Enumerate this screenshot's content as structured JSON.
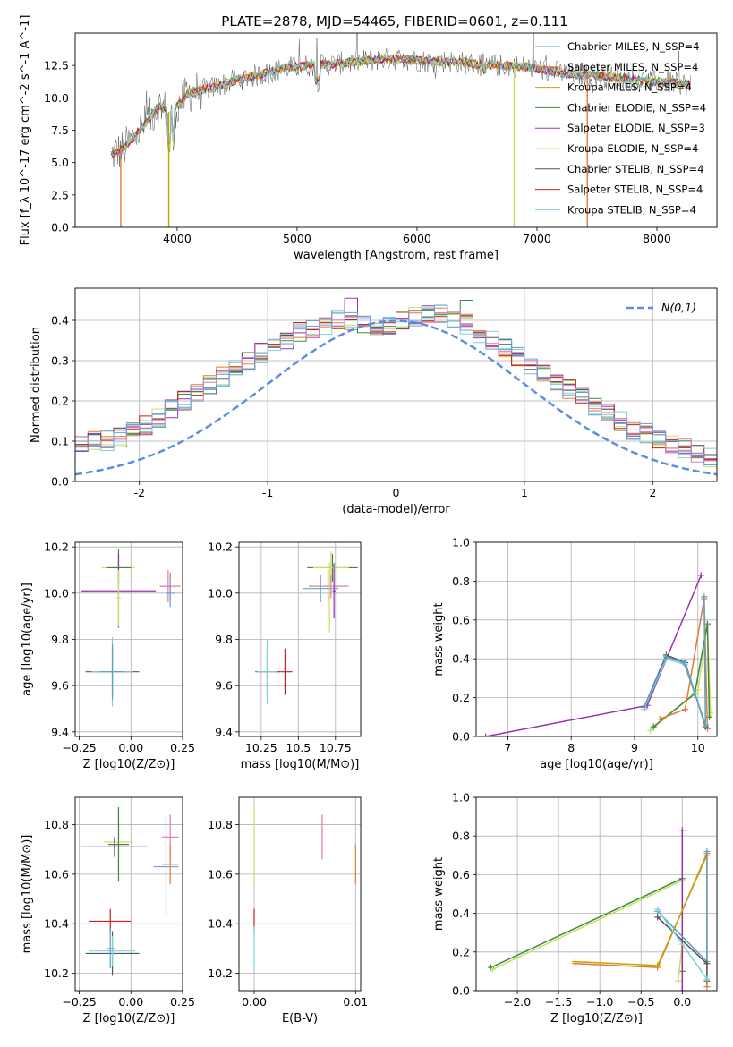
{
  "page": {
    "title": "PLATE=2878, MJD=54465, FIBERID=0601, z=0.111"
  },
  "colors": {
    "chabrier_miles": "#5aa0c8",
    "salpeter_miles": "#e07b39",
    "kroupa_miles": "#c8a000",
    "chabrier_elodie": "#3b8a3b",
    "salpeter_elodie": "#9b30b0",
    "kroupa_elodie": "#c8e060",
    "chabrier_stelib": "#555555",
    "salpeter_stelib": "#c81e1e",
    "kroupa_stelib": "#7fd0d8",
    "gauss": "#5b8ee0",
    "pink": "#e07bb0",
    "blue": "#6a9fe0"
  },
  "chart_data": [
    {
      "id": "spectrum",
      "type": "line",
      "title": "PLATE=2878, MJD=54465, FIBERID=0601, z=0.111",
      "xlabel": "wavelength [Angstrom, rest frame]",
      "ylabel": "Flux [f_λ 10^-17 erg cm^-2 s^-1 A^-1]",
      "xlim": [
        3150,
        8500
      ],
      "ylim": [
        0,
        15
      ],
      "xticks": [
        4000,
        5000,
        6000,
        7000,
        8000
      ],
      "yticks": [
        0.0,
        2.5,
        5.0,
        7.5,
        10.0,
        12.5
      ],
      "legend": "right",
      "series": [
        {
          "name": "Chabrier MILES, N_SSP=4",
          "color_key": "chabrier_miles"
        },
        {
          "name": "Salpeter MILES, N_SSP=4",
          "color_key": "salpeter_miles"
        },
        {
          "name": "Kroupa MILES, N_SSP=4",
          "color_key": "kroupa_miles"
        },
        {
          "name": "Chabrier ELODIE, N_SSP=4",
          "color_key": "chabrier_elodie"
        },
        {
          "name": "Salpeter ELODIE, N_SSP=3",
          "color_key": "salpeter_elodie"
        },
        {
          "name": "Kroupa ELODIE, N_SSP=4",
          "color_key": "kroupa_elodie"
        },
        {
          "name": "Chabrier STELIB, N_SSP=4",
          "color_key": "chabrier_stelib"
        },
        {
          "name": "Salpeter STELIB, N_SSP=4",
          "color_key": "salpeter_stelib"
        },
        {
          "name": "Kroupa STELIB, N_SSP=4",
          "color_key": "kroupa_stelib"
        }
      ],
      "continuum": {
        "x": [
          3450,
          3550,
          3700,
          3850,
          3950,
          4100,
          4300,
          4500,
          4700,
          4900,
          5100,
          5300,
          5500,
          5700,
          5900,
          6100,
          6300,
          6500,
          6700,
          6900,
          7100,
          7300,
          7500,
          7700,
          7900,
          8100,
          8280
        ],
        "y": [
          5.6,
          6.0,
          7.6,
          9.4,
          8.8,
          10.4,
          10.8,
          11.4,
          11.8,
          12.3,
          12.5,
          12.6,
          12.8,
          13.0,
          13.0,
          12.8,
          12.8,
          12.6,
          12.5,
          12.4,
          12.1,
          11.8,
          11.7,
          11.5,
          11.3,
          11.2,
          11.0
        ]
      },
      "drops": [
        {
          "x": 3530,
          "y": 0.0,
          "series_key": "salpeter_miles"
        },
        {
          "x": 3930,
          "y": 0.0,
          "series_key": "kroupa_miles"
        },
        {
          "x": 6810,
          "y": 0.0,
          "series_key": "kroupa_elodie"
        },
        {
          "x": 7420,
          "y": 0.0,
          "series_key": "salpeter_miles"
        }
      ]
    },
    {
      "id": "residuals",
      "type": "line",
      "xlabel": "(data-model)/error",
      "ylabel": "Normed distribution",
      "xlim": [
        -2.5,
        2.5
      ],
      "ylim": [
        0,
        0.48
      ],
      "xticks": [
        -2,
        -1,
        0,
        1,
        2
      ],
      "yticks": [
        0.0,
        0.1,
        0.2,
        0.3,
        0.4
      ],
      "legend": "top-right",
      "legend_label": "N(0,1)",
      "bins": {
        "bin_width": 0.1,
        "base_values": [
          0.02,
          0.03,
          0.04,
          0.045,
          0.05,
          0.06,
          0.07,
          0.09,
          0.1,
          0.1,
          0.11,
          0.13,
          0.14,
          0.16,
          0.18,
          0.2,
          0.22,
          0.24,
          0.26,
          0.28,
          0.3,
          0.32,
          0.33,
          0.35,
          0.37,
          0.38,
          0.39,
          0.4,
          0.4,
          0.39,
          0.38,
          0.39,
          0.4,
          0.41,
          0.42,
          0.42,
          0.4,
          0.39,
          0.37,
          0.35,
          0.33,
          0.31,
          0.29,
          0.27,
          0.25,
          0.23,
          0.21,
          0.19,
          0.17,
          0.15,
          0.13,
          0.12,
          0.1,
          0.09,
          0.08,
          0.07,
          0.06,
          0.05,
          0.045,
          0.04,
          0.03,
          0.03,
          0.02,
          0.02
        ]
      }
    },
    {
      "id": "z_vs_age",
      "type": "scatter",
      "xlabel": "Z [log10(Z/Z⊙)]",
      "ylabel": "age  [log10(age/yr)]",
      "xlim": [
        -0.27,
        0.25
      ],
      "ylim": [
        9.38,
        10.22
      ],
      "xticks": [
        -0.25,
        0.0,
        0.25
      ],
      "xticklabels": [
        "−0.25",
        "0.00",
        "0.25"
      ],
      "yticks": [
        9.4,
        9.6,
        9.8,
        10.0,
        10.2
      ],
      "points": [
        {
          "x": -0.06,
          "y": 10.11,
          "xerr": 0.08,
          "yerr": 0.06,
          "color_key": "kroupa_elodie"
        },
        {
          "x": -0.06,
          "y": 10.11,
          "xerr": 0.06,
          "yerr": 0.08,
          "color_key": "chabrier_elodie"
        },
        {
          "x": -0.06,
          "y": 10.01,
          "xerr": 0.18,
          "yerr": 0.16,
          "color_key": "salpeter_elodie"
        },
        {
          "x": -0.06,
          "y": 9.98,
          "xerr": 0.01,
          "yerr": 0.12,
          "color_key": "kroupa_elodie"
        },
        {
          "x": 0.19,
          "y": 10.03,
          "xerr": 0.05,
          "yerr": 0.06,
          "color_key": "salpeter_miles"
        },
        {
          "x": 0.18,
          "y": 10.03,
          "xerr": 0.04,
          "yerr": 0.07,
          "color_key": "pink"
        },
        {
          "x": 0.19,
          "y": 10.0,
          "xerr": 0.02,
          "yerr": 0.06,
          "color_key": "blue"
        },
        {
          "x": -0.09,
          "y": 9.66,
          "xerr": 0.13,
          "yerr": 0.09,
          "color_key": "chabrier_stelib"
        },
        {
          "x": -0.09,
          "y": 9.66,
          "xerr": 0.1,
          "yerr": 0.15,
          "color_key": "kroupa_stelib"
        },
        {
          "x": -0.09,
          "y": 9.66,
          "xerr": 0.06,
          "yerr": 0.12,
          "color_key": "chabrier_miles"
        }
      ]
    },
    {
      "id": "mass_vs_age",
      "type": "scatter",
      "xlabel": "mass [log10(M/M⊙)]",
      "xlim": [
        10.1,
        10.92
      ],
      "ylim": [
        9.38,
        10.22
      ],
      "xticks": [
        10.25,
        10.5,
        10.75
      ],
      "yticks": [
        9.4,
        9.6,
        9.8,
        10.0,
        10.2
      ],
      "points": [
        {
          "x": 10.73,
          "y": 10.11,
          "xerr": 0.17,
          "yerr": 0.06,
          "color_key": "chabrier_elodie"
        },
        {
          "x": 10.72,
          "y": 10.11,
          "xerr": 0.12,
          "yerr": 0.07,
          "color_key": "kroupa_elodie"
        },
        {
          "x": 10.7,
          "y": 10.03,
          "xerr": 0.13,
          "yerr": 0.07,
          "color_key": "salpeter_miles"
        },
        {
          "x": 10.72,
          "y": 10.03,
          "xerr": 0.12,
          "yerr": 0.05,
          "color_key": "pink"
        },
        {
          "x": 10.65,
          "y": 10.02,
          "xerr": 0.12,
          "yerr": 0.06,
          "color_key": "blue"
        },
        {
          "x": 10.74,
          "y": 10.01,
          "xerr": 0.01,
          "yerr": 0.12,
          "color_key": "salpeter_elodie"
        },
        {
          "x": 10.71,
          "y": 9.98,
          "xerr": 0.01,
          "yerr": 0.15,
          "color_key": "kroupa_elodie"
        },
        {
          "x": 10.29,
          "y": 9.66,
          "xerr": 0.08,
          "yerr": 0.09,
          "color_key": "chabrier_stelib"
        },
        {
          "x": 10.41,
          "y": 9.66,
          "xerr": 0.05,
          "yerr": 0.1,
          "color_key": "salpeter_stelib"
        },
        {
          "x": 10.29,
          "y": 9.66,
          "xerr": 0.07,
          "yerr": 0.14,
          "color_key": "kroupa_stelib"
        }
      ]
    },
    {
      "id": "age_vs_weight",
      "type": "line",
      "xlabel": "age  [log10(age/yr)]",
      "ylabel": "mass weight",
      "xlim": [
        6.5,
        10.3
      ],
      "ylim": [
        0,
        1.0
      ],
      "xticks": [
        7,
        8,
        9,
        10
      ],
      "yticks": [
        0.0,
        0.2,
        0.4,
        0.6,
        0.8,
        1.0
      ],
      "series": [
        {
          "color_key": "salpeter_elodie",
          "x": [
            6.65,
            9.2,
            10.05
          ],
          "y": [
            0.0,
            0.16,
            0.83
          ]
        },
        {
          "color_key": "kroupa_elodie",
          "x": [
            9.25,
            10.0,
            10.15,
            10.2
          ],
          "y": [
            0.03,
            0.24,
            0.57,
            0.12
          ]
        },
        {
          "color_key": "chabrier_elodie",
          "x": [
            9.3,
            9.95,
            10.15,
            10.18
          ],
          "y": [
            0.05,
            0.22,
            0.58,
            0.1
          ]
        },
        {
          "color_key": "salpeter_miles",
          "x": [
            9.4,
            9.8,
            10.1,
            10.15
          ],
          "y": [
            0.09,
            0.14,
            0.71,
            0.04
          ]
        },
        {
          "color_key": "chabrier_stelib",
          "x": [
            9.15,
            9.5,
            9.8,
            10.12
          ],
          "y": [
            0.15,
            0.42,
            0.38,
            0.05
          ]
        },
        {
          "color_key": "kroupa_stelib",
          "x": [
            9.15,
            9.5,
            9.8,
            10.12
          ],
          "y": [
            0.14,
            0.4,
            0.37,
            0.06
          ]
        },
        {
          "color_key": "chabrier_miles",
          "x": [
            9.15,
            9.5,
            9.78,
            10.12,
            10.1
          ],
          "y": [
            0.15,
            0.41,
            0.38,
            0.06,
            0.72
          ]
        }
      ]
    },
    {
      "id": "z_vs_mass",
      "type": "scatter",
      "xlabel": "Z [log10(Z/Z⊙)]",
      "ylabel": "mass [log10(M/M⊙)]",
      "xlim": [
        -0.27,
        0.25
      ],
      "ylim": [
        10.13,
        10.91
      ],
      "xticks": [
        -0.25,
        0.0,
        0.25
      ],
      "xticklabels": [
        "−0.25",
        "0.00",
        "0.25"
      ],
      "yticks": [
        10.2,
        10.4,
        10.6,
        10.8
      ],
      "points": [
        {
          "x": -0.06,
          "y": 10.73,
          "xerr": 0.07,
          "yerr": 0.13,
          "color_key": "kroupa_elodie"
        },
        {
          "x": -0.06,
          "y": 10.72,
          "xerr": 0.05,
          "yerr": 0.15,
          "color_key": "chabrier_elodie"
        },
        {
          "x": -0.08,
          "y": 10.71,
          "xerr": 0.16,
          "yerr": 0.04,
          "color_key": "salpeter_elodie"
        },
        {
          "x": 0.19,
          "y": 10.75,
          "xerr": 0.04,
          "yerr": 0.09,
          "color_key": "pink"
        },
        {
          "x": 0.19,
          "y": 10.64,
          "xerr": 0.04,
          "yerr": 0.08,
          "color_key": "salpeter_miles"
        },
        {
          "x": 0.17,
          "y": 10.63,
          "xerr": 0.06,
          "yerr": 0.2,
          "color_key": "blue"
        },
        {
          "x": -0.1,
          "y": 10.41,
          "xerr": 0.1,
          "yerr": 0.05,
          "color_key": "salpeter_stelib"
        },
        {
          "x": -0.09,
          "y": 10.28,
          "xerr": 0.13,
          "yerr": 0.09,
          "color_key": "chabrier_stelib"
        },
        {
          "x": -0.09,
          "y": 10.29,
          "xerr": 0.11,
          "yerr": 0.06,
          "color_key": "kroupa_stelib"
        },
        {
          "x": -0.1,
          "y": 10.3,
          "xerr": 0.02,
          "yerr": 0.08,
          "color_key": "chabrier_miles"
        }
      ]
    },
    {
      "id": "ebv_vs_mass",
      "type": "scatter",
      "xlabel": "E(B-V)",
      "xlim": [
        -0.0015,
        0.0105
      ],
      "ylim": [
        10.13,
        10.91
      ],
      "xticks": [
        0.0,
        0.01
      ],
      "xticklabels": [
        "0.00",
        "0.01"
      ],
      "yticks": [
        10.2,
        10.4,
        10.6,
        10.8
      ],
      "points": [
        {
          "x": 0.0,
          "y": 10.72,
          "xerr": 0.0,
          "yerr": 0.16,
          "color_key": "kroupa_elodie"
        },
        {
          "x": 0.0,
          "y": 10.41,
          "xerr": 0.0,
          "yerr": 0.05,
          "color_key": "salpeter_stelib"
        },
        {
          "x": 0.0,
          "y": 10.3,
          "xerr": 0.0,
          "yerr": 0.09,
          "color_key": "kroupa_stelib"
        },
        {
          "x": 0.0067,
          "y": 10.75,
          "xerr": 0.0,
          "yerr": 0.09,
          "color_key": "pink"
        },
        {
          "x": 0.01,
          "y": 10.64,
          "xerr": 0.0,
          "yerr": 0.08,
          "color_key": "salpeter_miles"
        }
      ]
    },
    {
      "id": "z_vs_weight",
      "type": "line",
      "xlabel": "Z [log10(Z/Z⊙)]",
      "ylabel": "mass weight",
      "xlim": [
        -2.5,
        0.42
      ],
      "ylim": [
        0,
        1.0
      ],
      "xticks": [
        -2.0,
        -1.5,
        -1.0,
        -0.5,
        0.0
      ],
      "xticklabels": [
        "−2.0",
        "−1.5",
        "−1.0",
        "−0.5",
        "0.0"
      ],
      "yticks": [
        0.0,
        0.2,
        0.4,
        0.6,
        0.8,
        1.0
      ],
      "series": [
        {
          "color_key": "chabrier_elodie",
          "x": [
            -2.32,
            0.0,
            0.0
          ],
          "y": [
            0.12,
            0.58,
            0.1
          ]
        },
        {
          "color_key": "kroupa_elodie",
          "x": [
            -2.3,
            0.0,
            0.0,
            -0.05
          ],
          "y": [
            0.11,
            0.57,
            0.24,
            0.05
          ]
        },
        {
          "color_key": "salpeter_elodie",
          "x": [
            0.0,
            0.0
          ],
          "y": [
            0.83,
            0.0
          ]
        },
        {
          "color_key": "salpeter_miles",
          "x": [
            -1.3,
            -0.3,
            0.3,
            0.3
          ],
          "y": [
            0.14,
            0.12,
            0.71,
            0.02
          ]
        },
        {
          "color_key": "kroupa_miles",
          "x": [
            -1.3,
            -0.3,
            0.3
          ],
          "y": [
            0.15,
            0.13,
            0.7
          ]
        },
        {
          "color_key": "chabrier_miles",
          "x": [
            -0.3,
            0.3,
            0.3
          ],
          "y": [
            0.41,
            0.15,
            0.72
          ]
        },
        {
          "color_key": "chabrier_stelib",
          "x": [
            -0.3,
            0.3,
            0.3
          ],
          "y": [
            0.38,
            0.14,
            0.05
          ]
        },
        {
          "color_key": "kroupa_stelib",
          "x": [
            -0.3,
            0.3
          ],
          "y": [
            0.42,
            0.06
          ]
        }
      ]
    }
  ]
}
